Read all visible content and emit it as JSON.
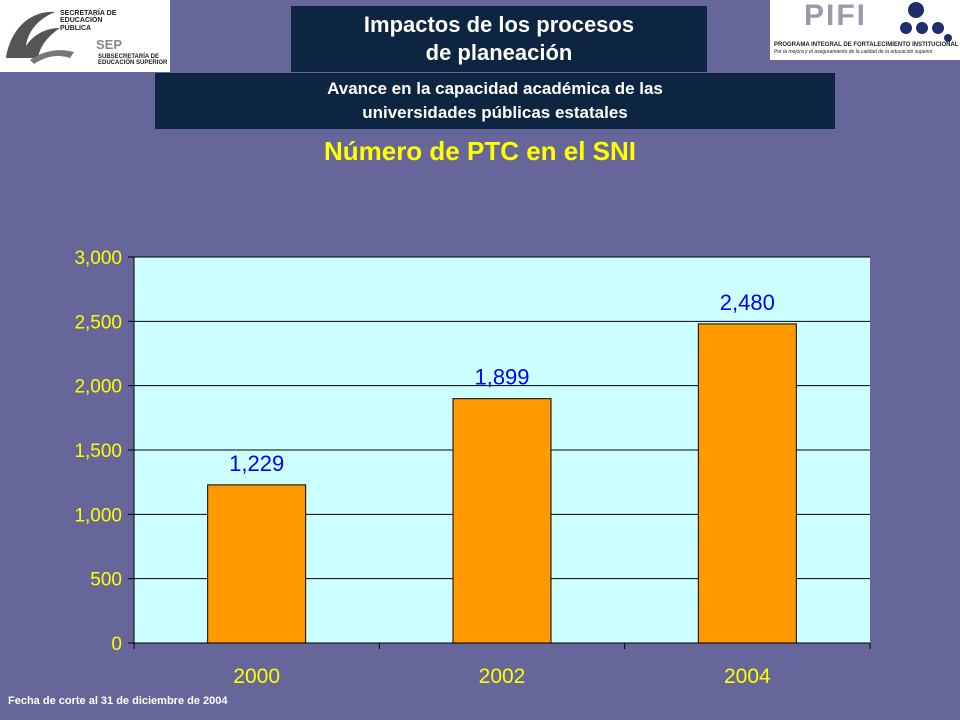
{
  "header": {
    "title_line1": "Impactos de los procesos",
    "title_line2": "de planeación",
    "subtitle_line1": "Avance en la capacidad académica de las",
    "subtitle_line2": "universidades públicas estatales"
  },
  "logos": {
    "left": {
      "line1": "SECRETARÍA DE",
      "line2": "EDUCACIÓN",
      "line3": "PÚBLICA",
      "mark": "SEP",
      "line4": "SUBSECRETARÍA DE",
      "line5": "EDUCACIÓN SUPERIOR"
    },
    "right": {
      "mark": "PIFI",
      "line1": "PROGRAMA INTEGRAL DE FORTALECIMIENTO INSTITUCIONAL",
      "line2": "Por la mejora y el aseguramiento de la calidad de la educación superior"
    }
  },
  "chart_data": {
    "type": "bar",
    "title": "Número de PTC en el SNI",
    "categories": [
      "2000",
      "2002",
      "2004"
    ],
    "values": [
      1229,
      1899,
      2480
    ],
    "value_labels": [
      "1,229",
      "1,899",
      "2,480"
    ],
    "ylim": [
      0,
      3000
    ],
    "yticks": [
      0,
      500,
      1000,
      1500,
      2000,
      2500,
      3000
    ],
    "ytick_labels": [
      "0",
      "500",
      "1,000",
      "1,500",
      "2,000",
      "2,500",
      "3,000"
    ],
    "xlabel": "",
    "ylabel": "",
    "grid": true,
    "colors": {
      "bar": "#ff9900",
      "plot_bg": "#ccffff",
      "value_label": "#0000ff",
      "axis_text": "#ffff00"
    }
  },
  "footnote": "Fecha de corte al 31 de diciembre de 2004"
}
